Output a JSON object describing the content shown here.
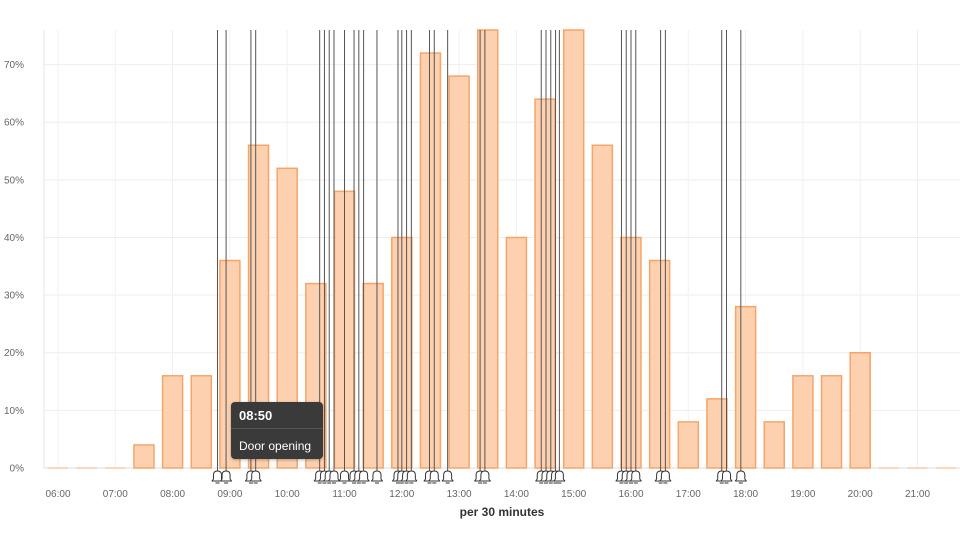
{
  "chart_data": {
    "type": "bar",
    "xlabel": "per 30 minutes",
    "ylabel": "",
    "ylim": [
      0,
      76
    ],
    "y_ticks": [
      "0%",
      "10%",
      "20%",
      "30%",
      "40%",
      "50%",
      "60%",
      "70%"
    ],
    "y_tick_values": [
      0,
      10,
      20,
      30,
      40,
      50,
      60,
      70
    ],
    "x_ticks": [
      "06:00",
      "07:00",
      "08:00",
      "09:00",
      "10:00",
      "11:00",
      "12:00",
      "13:00",
      "14:00",
      "15:00",
      "16:00",
      "17:00",
      "18:00",
      "19:00",
      "20:00",
      "21:00"
    ],
    "grid": true,
    "bar_color": "#fdd1b0",
    "bar_border_color": "#f5a56a",
    "categories": [
      "06:00",
      "06:30",
      "07:00",
      "07:30",
      "08:00",
      "08:30",
      "09:00",
      "09:30",
      "10:00",
      "10:30",
      "11:00",
      "11:30",
      "12:00",
      "12:30",
      "13:00",
      "13:30",
      "14:00",
      "14:30",
      "15:00",
      "15:30",
      "16:00",
      "16:30",
      "17:00",
      "17:30",
      "18:00",
      "18:30",
      "19:00",
      "19:30",
      "20:00",
      "20:30",
      "21:00",
      "21:30"
    ],
    "values": [
      0,
      0,
      0,
      4,
      16,
      16,
      36,
      56,
      52,
      32,
      48,
      32,
      40,
      72,
      68,
      76,
      40,
      64,
      76,
      56,
      40,
      36,
      8,
      12,
      28,
      8,
      16,
      16,
      20,
      0,
      0,
      0
    ],
    "events": {
      "icon": "bell-icon",
      "line_color": "#555555",
      "times": [
        "08:47",
        "08:56",
        "09:22",
        "09:27",
        "10:34",
        "10:39",
        "10:44",
        "10:49",
        "11:00",
        "11:10",
        "11:15",
        "11:20",
        "11:34",
        "11:56",
        "12:00",
        "12:05",
        "12:10",
        "12:29",
        "12:34",
        "12:48",
        "13:22",
        "13:27",
        "14:26",
        "14:31",
        "14:36",
        "14:41",
        "14:45",
        "15:50",
        "15:55",
        "16:00",
        "16:05",
        "16:31",
        "16:36",
        "17:35",
        "17:40",
        "17:55"
      ]
    },
    "tooltip": {
      "title": "08:50",
      "label": "Door opening"
    }
  }
}
